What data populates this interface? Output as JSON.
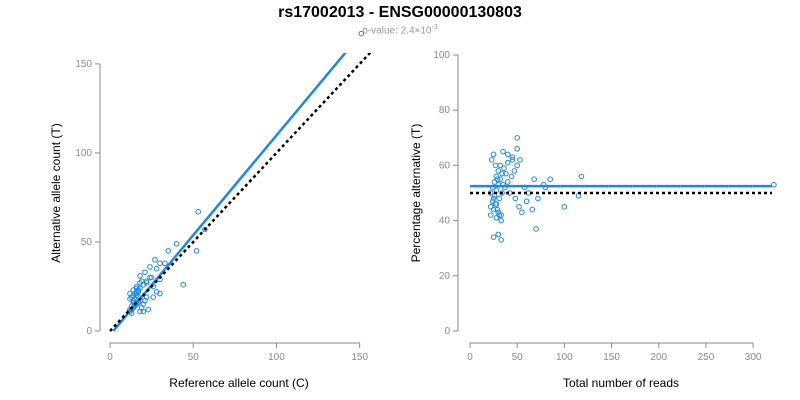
{
  "header": {
    "title": "rs17002013 - ENSG00000130803",
    "subtitle_prefix": "p-value: 2.4×10",
    "subtitle_exp": "-3"
  },
  "colors": {
    "accent": "#1f87e6",
    "reference": "#000000",
    "axis": "#8a8a8a"
  },
  "chart_data": [
    {
      "type": "scatter",
      "xlabel": "Reference allele count (C)",
      "ylabel": "Alternative allele count (T)",
      "xlim": [
        0,
        155
      ],
      "ylim": [
        0,
        155
      ],
      "xticks": [
        0,
        50,
        100,
        150
      ],
      "yticks": [
        0,
        50,
        100,
        150
      ],
      "x": [
        13,
        14,
        15,
        16,
        17,
        18,
        12,
        13,
        14,
        15,
        16,
        17,
        18,
        19,
        20,
        21,
        22,
        12,
        13,
        14,
        15,
        16,
        17,
        18,
        20,
        22,
        24,
        26,
        28,
        30,
        35,
        12,
        14,
        16,
        18,
        20,
        23,
        25,
        27,
        30,
        13,
        15,
        17,
        19,
        21,
        24,
        28,
        33,
        12,
        14,
        16,
        18,
        22,
        26,
        30,
        40,
        44,
        53,
        57,
        52,
        151
      ],
      "y": [
        12,
        13,
        14,
        15,
        16,
        17,
        18,
        19,
        20,
        21,
        22,
        23,
        11,
        13,
        15,
        17,
        19,
        12,
        14,
        16,
        18,
        20,
        22,
        24,
        26,
        28,
        30,
        25,
        35,
        38,
        45,
        21,
        23,
        25,
        27,
        11,
        12,
        30,
        40,
        29,
        10,
        15,
        19,
        28,
        33,
        36,
        22,
        38,
        11,
        17,
        24,
        31,
        27,
        19,
        21,
        49,
        26,
        67,
        57,
        45,
        167
      ],
      "lines": [
        {
          "name": "fit",
          "style": "solid",
          "x": [
            2,
            151
          ],
          "y": [
            0,
            167
          ]
        },
        {
          "name": "reference",
          "style": "dotted",
          "x": [
            0,
            167
          ],
          "y": [
            0,
            167
          ]
        }
      ]
    },
    {
      "type": "scatter",
      "xlabel": "Total number of reads",
      "ylabel": "Percentage alternative (T)",
      "xlim": [
        0,
        320
      ],
      "ylim": [
        0,
        100
      ],
      "xticks": [
        0,
        50,
        100,
        150,
        200,
        250,
        300
      ],
      "yticks": [
        0,
        20,
        40,
        60,
        80,
        100
      ],
      "x": [
        22,
        24,
        26,
        28,
        30,
        32,
        25,
        27,
        29,
        31,
        33,
        23,
        25,
        27,
        29,
        35,
        38,
        40,
        45,
        50,
        22,
        24,
        26,
        28,
        30,
        32,
        34,
        36,
        42,
        48,
        52,
        55,
        60,
        66,
        70,
        22,
        25,
        28,
        31,
        34,
        37,
        40,
        44,
        47,
        50,
        53,
        58,
        62,
        68,
        72,
        78,
        80,
        85,
        100,
        115,
        118,
        25,
        30,
        33,
        35,
        40,
        45,
        50,
        30,
        28,
        33,
        322
      ],
      "y": [
        50,
        52,
        54,
        56,
        58,
        60,
        48,
        46,
        44,
        42,
        40,
        62,
        64,
        60,
        55,
        53,
        57,
        61,
        63,
        66,
        45,
        47,
        49,
        51,
        53,
        55,
        57,
        59,
        50,
        48,
        45,
        43,
        47,
        44,
        37,
        42,
        44,
        46,
        48,
        50,
        52,
        54,
        56,
        58,
        60,
        62,
        52,
        50,
        55,
        48,
        53,
        52,
        55,
        45,
        49,
        56,
        34,
        35,
        33,
        65,
        64,
        62,
        70,
        43,
        41,
        42,
        53
      ],
      "lines": [
        {
          "name": "fit",
          "style": "solid",
          "x": [
            0,
            320
          ],
          "y": [
            52.5,
            52.5
          ]
        },
        {
          "name": "reference",
          "style": "dotted",
          "x": [
            0,
            320
          ],
          "y": [
            50,
            50
          ]
        }
      ]
    }
  ]
}
